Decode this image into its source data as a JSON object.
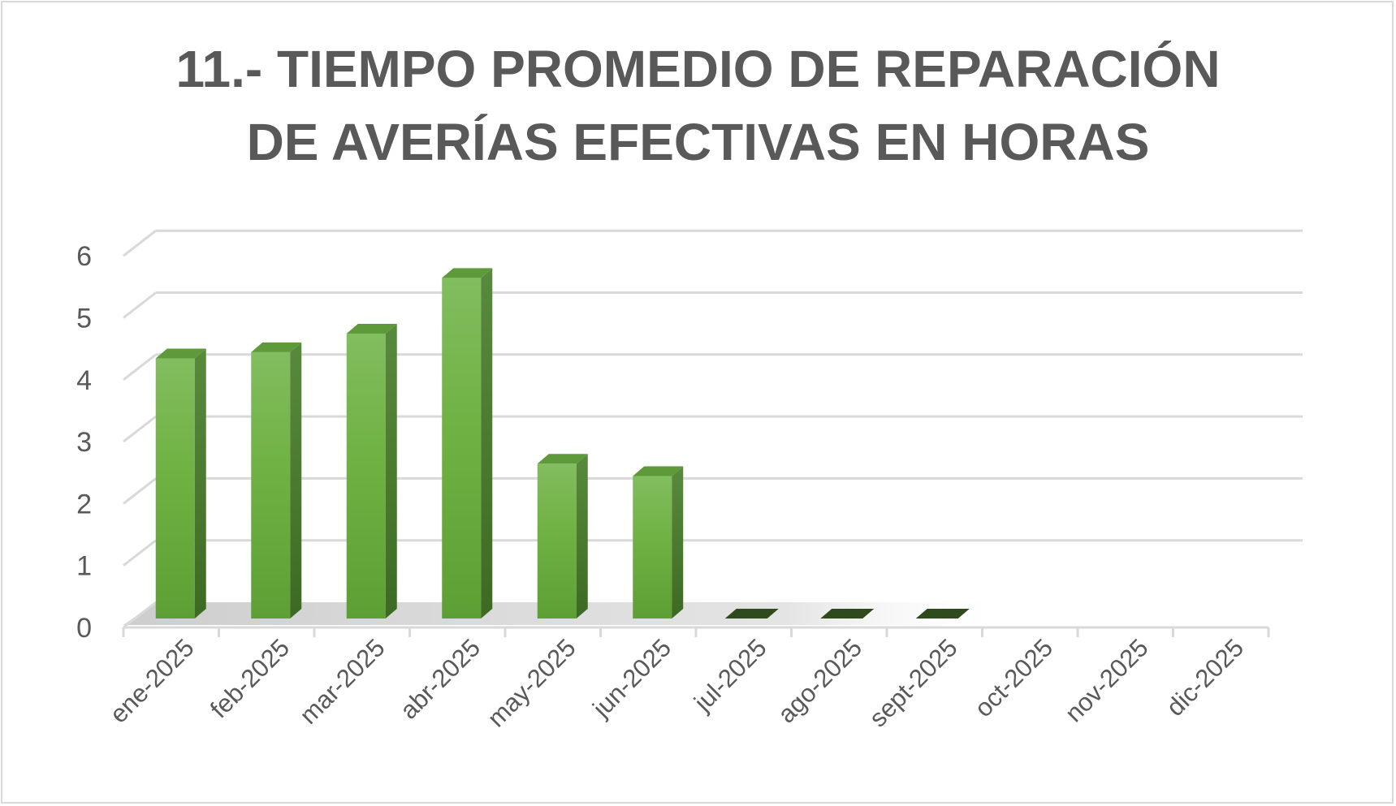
{
  "chart_data": {
    "type": "bar",
    "title_lines": [
      "11.- TIEMPO PROMEDIO DE REPARACIÓN",
      "DE AVERÍAS EFECTIVAS EN HORAS"
    ],
    "categories": [
      "ene-2025",
      "feb-2025",
      "mar-2025",
      "abr-2025",
      "may-2025",
      "jun-2025",
      "jul-2025",
      "ago-2025",
      "sept-2025",
      "oct-2025",
      "nov-2025",
      "dic-2025"
    ],
    "values": [
      4.2,
      4.3,
      4.6,
      5.5,
      2.5,
      2.3,
      0,
      0,
      0,
      null,
      null,
      null
    ],
    "ylim": [
      0,
      6
    ],
    "yticks": [
      0,
      1,
      2,
      3,
      4,
      5,
      6
    ],
    "grid": true,
    "style": "3d-column",
    "colors": {
      "bar": "#70ad47",
      "bar_side": "#4a7a2c",
      "bar_top": "#5f9a3a",
      "grid": "#d9d9d9",
      "text": "#595959"
    }
  }
}
